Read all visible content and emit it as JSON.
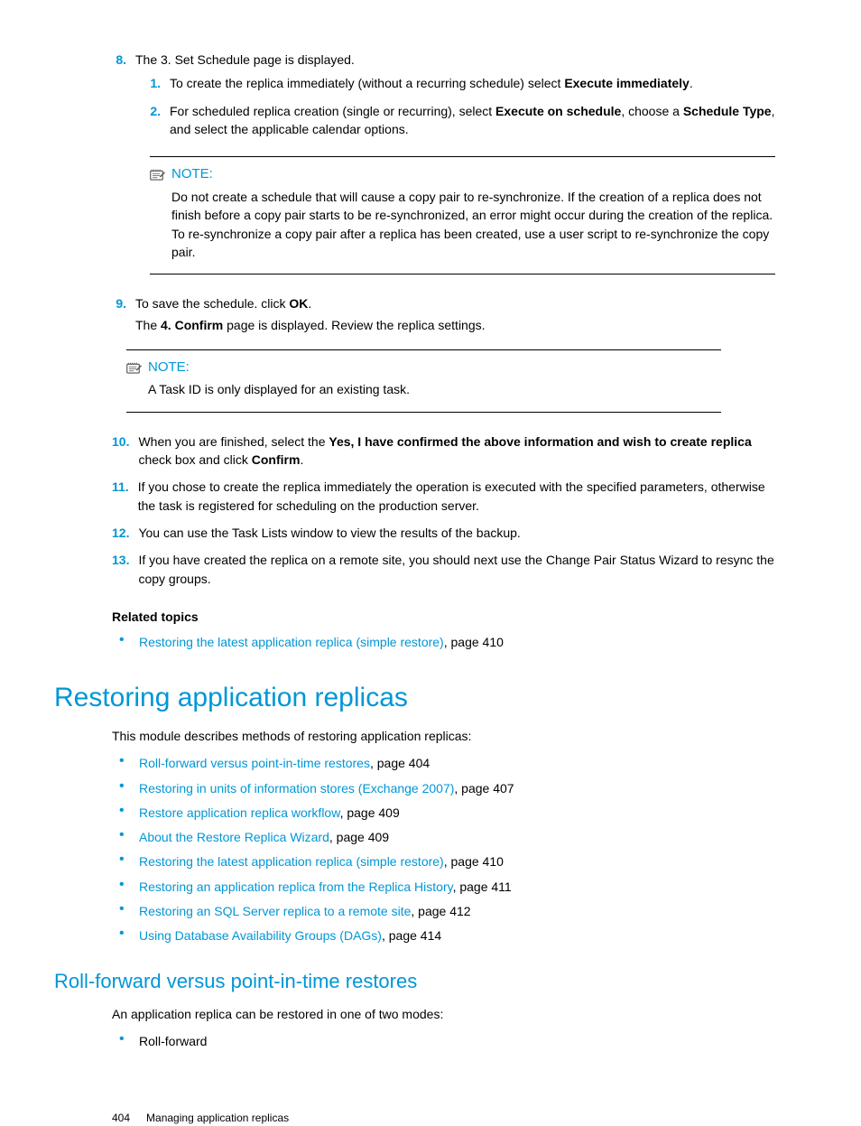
{
  "colors": {
    "accent": "#0096d6",
    "text": "#000000",
    "bg": "#ffffff"
  },
  "step8": {
    "num": "8.",
    "text": "The 3. Set Schedule page is displayed.",
    "sub1": {
      "num": "1.",
      "pre": "To create the replica immediately (without a recurring schedule) select ",
      "bold": "Execute immediately",
      "post": "."
    },
    "sub2": {
      "num": "2.",
      "pre": "For scheduled replica creation (single or recurring), select ",
      "bold1": "Execute on schedule",
      "mid": ", choose a ",
      "bold2": "Schedule Type",
      "post": ", and select the applicable calendar options."
    }
  },
  "note1": {
    "label": "NOTE:",
    "text": "Do not create a schedule that will cause a copy pair to re-synchronize. If the creation of a replica does not finish before a copy pair starts to be re-synchronized, an error might occur during the creation of the replica. To re-synchronize a copy pair after a replica has been created, use a user script to re-synchronize the copy pair."
  },
  "step9": {
    "num": "9.",
    "pre": "To save the schedule. click ",
    "bold": "OK",
    "post": ".",
    "after_pre": "The ",
    "after_bold": "4. Confirm",
    "after_post": " page is displayed. Review the replica settings."
  },
  "note2": {
    "label": "NOTE:",
    "text": "A Task ID is only displayed for an existing task."
  },
  "step10": {
    "num": "10.",
    "pre": "When you are finished, select the ",
    "bold1": "Yes, I have confirmed the above information and wish to create replica",
    "mid": " check box and click ",
    "bold2": "Confirm",
    "post": "."
  },
  "step11": {
    "num": "11.",
    "text": "If you chose to create the replica immediately the operation is executed with the specified parameters, otherwise the task is registered for scheduling on the production server."
  },
  "step12": {
    "num": "12.",
    "text": "You can use the Task Lists window to view the results of the backup."
  },
  "step13": {
    "num": "13.",
    "text": "If you have created the replica on a remote site, you should next use the Change Pair Status Wizard to resync the copy groups."
  },
  "related": {
    "heading": "Related topics",
    "item": {
      "link": "Restoring the latest application replica (simple restore)",
      "suffix": ", page 410"
    }
  },
  "section": {
    "title": "Restoring application replicas",
    "intro": "This module describes methods of restoring application replicas:",
    "links": [
      {
        "link": "Roll-forward versus point-in-time restores",
        "suffix": ", page 404"
      },
      {
        "link": "Restoring in units of information stores (Exchange 2007)",
        "suffix": ", page 407"
      },
      {
        "link": "Restore application replica workflow",
        "suffix": ", page 409"
      },
      {
        "link": "About the Restore Replica Wizard",
        "suffix": ", page 409"
      },
      {
        "link": "Restoring the latest application replica (simple restore)",
        "suffix": ", page 410"
      },
      {
        "link": "Restoring an application replica from the Replica History",
        "suffix": ", page 411"
      },
      {
        "link": "Restoring an SQL Server replica to a remote site",
        "suffix": ", page 412"
      },
      {
        "link": "Using Database Availability Groups (DAGs)",
        "suffix": ", page 414"
      }
    ]
  },
  "subsection": {
    "title": "Roll-forward versus point-in-time restores",
    "intro": "An application replica can be restored in one of two modes:",
    "bullet": "Roll-forward"
  },
  "footer": {
    "page": "404",
    "chapter": "Managing application replicas"
  }
}
